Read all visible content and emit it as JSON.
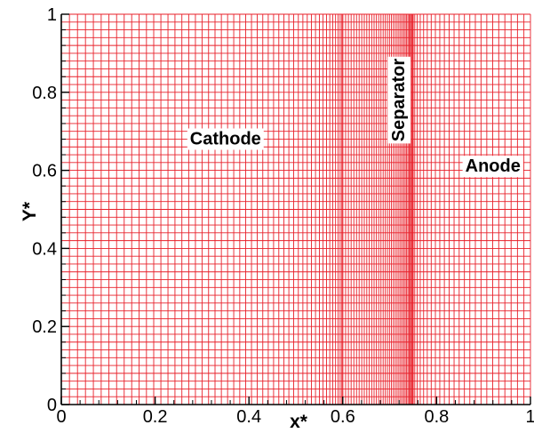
{
  "chart_data": {
    "type": "mesh-grid",
    "xlabel": "x*",
    "ylabel": "Y*",
    "xlim": [
      0,
      1
    ],
    "ylim": [
      0,
      1
    ],
    "xticks": [
      0,
      0.2,
      0.4,
      0.6,
      0.8,
      1
    ],
    "xtick_labels": [
      "0",
      "0.2",
      "0.4",
      "0.6",
      "0.8",
      "1"
    ],
    "yticks": [
      0,
      0.2,
      0.4,
      0.6,
      0.8,
      1
    ],
    "ytick_labels": [
      "0",
      "0.2",
      "0.4",
      "0.6",
      "0.8",
      "1"
    ],
    "grid_color": "#e8202a",
    "mesh": {
      "horizontal_lines": 51,
      "x_regions": [
        {
          "name": "cathode-mesh",
          "x_start": 0.0,
          "x_end": 0.6,
          "lines": 51,
          "spacing": "stretched-fine-toward-separator"
        },
        {
          "name": "separator-mesh",
          "x_start": 0.6,
          "x_end": 0.75,
          "lines": 37,
          "spacing": "stretched-fine-toward-separator"
        },
        {
          "name": "anode-mesh",
          "x_start": 0.75,
          "x_end": 1.0,
          "lines": 25,
          "spacing": "stretched-coarse-toward-edge"
        }
      ]
    },
    "regions": [
      {
        "label": "Cathode",
        "x": 0.35,
        "y": 0.68,
        "orientation": "horizontal"
      },
      {
        "label": "Separator",
        "x": 0.72,
        "y": 0.78,
        "orientation": "vertical"
      },
      {
        "label": "Anode",
        "x": 0.92,
        "y": 0.61,
        "orientation": "horizontal"
      }
    ]
  }
}
